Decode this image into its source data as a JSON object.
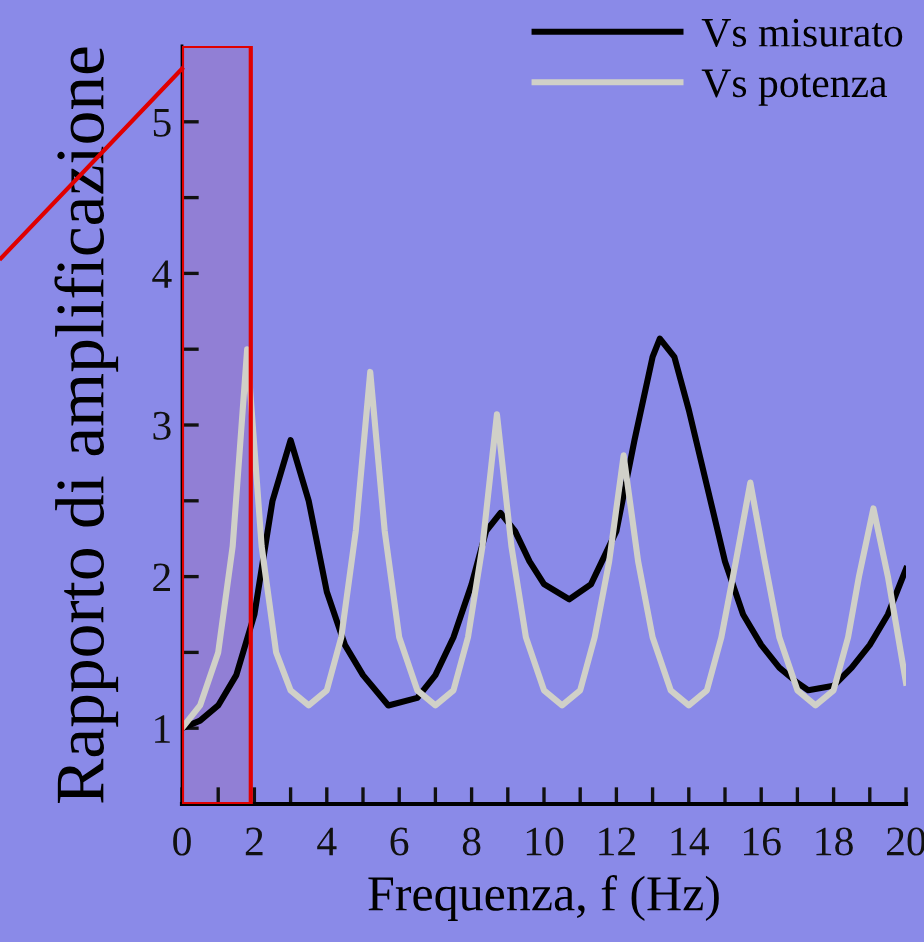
{
  "chart_data": {
    "type": "line",
    "xlabel": "Frequenza, f (Hz)",
    "ylabel": "Rapporto di amplificazione",
    "xlim": [
      0,
      20
    ],
    "ylim": [
      0.5,
      5.5
    ],
    "xticks": [
      0,
      {
        "value": 1,
        "label": null
      },
      2,
      {
        "value": 3,
        "label": null
      },
      4,
      {
        "value": 5,
        "label": null
      },
      6,
      {
        "value": 7,
        "label": null
      },
      8,
      {
        "value": 9,
        "label": null
      },
      10,
      {
        "value": 11,
        "label": null
      },
      12,
      {
        "value": 13,
        "label": null
      },
      14,
      {
        "value": 15,
        "label": null
      },
      16,
      {
        "value": 17,
        "label": null
      },
      18,
      {
        "value": 19,
        "label": null
      },
      20
    ],
    "yticks": [
      1,
      {
        "value": 1.5,
        "label": null
      },
      2,
      {
        "value": 2.5,
        "label": null
      },
      3,
      {
        "value": 3.5,
        "label": null
      },
      4,
      {
        "value": 4.5,
        "label": null
      },
      5
    ],
    "legend": "top right",
    "grid": false,
    "bands": [
      {
        "axis": "x",
        "from": 0,
        "to": 1.9,
        "label": null,
        "color": "#e00000"
      }
    ],
    "series": [
      {
        "name": "Vs misurato",
        "color": "#000000",
        "x": [
          0,
          0.5,
          1,
          1.5,
          2,
          2.5,
          3,
          3.5,
          4,
          4.5,
          5,
          5.7,
          6.5,
          7,
          7.5,
          8,
          8.4,
          8.8,
          9.2,
          9.6,
          10,
          10.7,
          11.3,
          12,
          12.5,
          13,
          13.2,
          13.6,
          14,
          14.5,
          15,
          15.5,
          16,
          16.5,
          17,
          17.3,
          18,
          18.5,
          19,
          19.5,
          20
        ],
        "values": [
          1.0,
          1.05,
          1.15,
          1.35,
          1.75,
          2.5,
          2.9,
          2.5,
          1.9,
          1.55,
          1.35,
          1.15,
          1.2,
          1.35,
          1.6,
          1.95,
          2.3,
          2.42,
          2.3,
          2.1,
          1.95,
          1.85,
          1.95,
          2.3,
          2.9,
          3.45,
          3.57,
          3.45,
          3.1,
          2.6,
          2.1,
          1.75,
          1.55,
          1.4,
          1.3,
          1.25,
          1.28,
          1.4,
          1.55,
          1.75,
          2.05
        ]
      },
      {
        "name": "Vs potenza",
        "color": "#d0d0c8",
        "x": [
          0,
          0.5,
          1,
          1.4,
          1.8,
          2.2,
          2.6,
          3,
          3.5,
          4,
          4.4,
          4.8,
          5.2,
          5.6,
          6,
          6.5,
          7,
          7.5,
          7.9,
          8.3,
          8.7,
          9.1,
          9.5,
          10,
          10.5,
          11,
          11.4,
          11.8,
          12.2,
          12.6,
          13,
          13.5,
          14,
          14.5,
          14.9,
          15.3,
          15.7,
          16.1,
          16.5,
          17,
          17.5,
          18,
          18.4,
          18.7,
          19.1,
          19.5,
          20
        ],
        "values": [
          1.0,
          1.15,
          1.5,
          2.2,
          3.5,
          2.2,
          1.5,
          1.25,
          1.15,
          1.25,
          1.6,
          2.3,
          3.35,
          2.3,
          1.6,
          1.25,
          1.15,
          1.25,
          1.6,
          2.2,
          3.07,
          2.2,
          1.6,
          1.25,
          1.15,
          1.25,
          1.6,
          2.1,
          2.8,
          2.1,
          1.6,
          1.25,
          1.15,
          1.25,
          1.6,
          2.1,
          2.62,
          2.1,
          1.6,
          1.25,
          1.15,
          1.25,
          1.6,
          2.0,
          2.45,
          2.0,
          1.3
        ]
      }
    ]
  }
}
